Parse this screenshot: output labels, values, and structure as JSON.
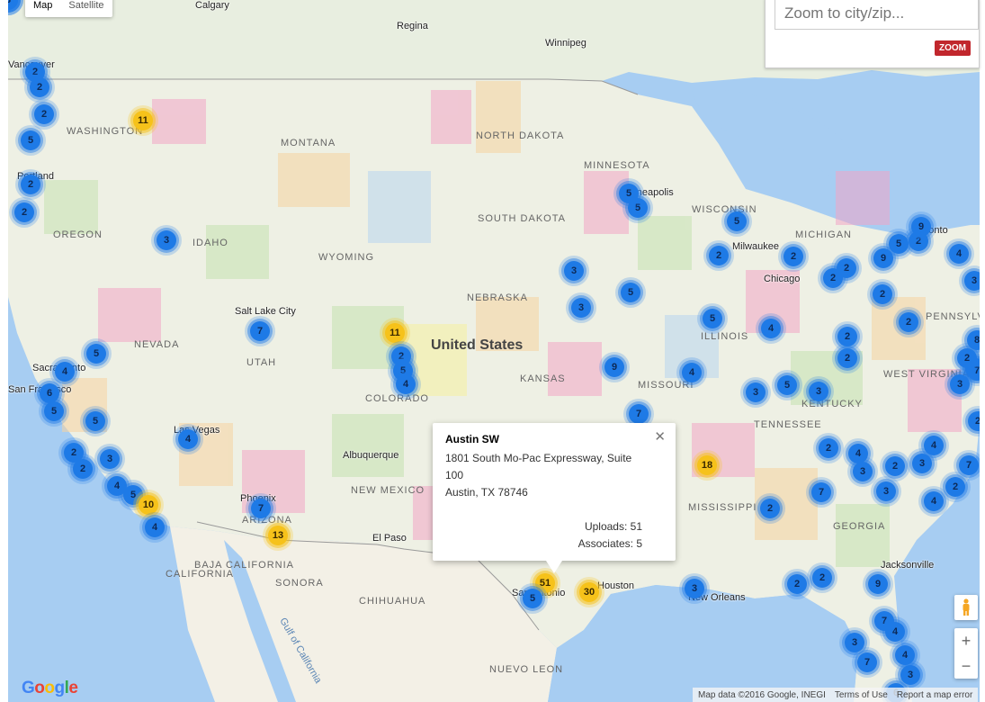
{
  "map_type": {
    "map": "Map",
    "satellite": "Satellite"
  },
  "search": {
    "placeholder": "Zoom to city/zip...",
    "button": "ZOOM"
  },
  "country_label": "United States",
  "cities": [
    {
      "name": "Calgary"
    },
    {
      "name": "Regina"
    },
    {
      "name": "Winnipeg"
    },
    {
      "name": "Salt Lake City"
    },
    {
      "name": "Las Vegas"
    },
    {
      "name": "Albuquerque"
    },
    {
      "name": "El Paso"
    },
    {
      "name": "Milwaukee"
    },
    {
      "name": "Toronto"
    },
    {
      "name": "Jacksonville"
    },
    {
      "name": "Houston"
    },
    {
      "name": "Phoenix"
    },
    {
      "name": "San Francisco"
    },
    {
      "name": "Sacramento"
    },
    {
      "name": "Portland"
    },
    {
      "name": "Minneapolis"
    },
    {
      "name": "Chicago"
    },
    {
      "name": "San Antonio"
    },
    {
      "name": "New Orleans"
    },
    {
      "name": "Vancouver"
    }
  ],
  "states": [
    {
      "name": "WASHINGTON"
    },
    {
      "name": "MONTANA"
    },
    {
      "name": "NORTH DAKOTA"
    },
    {
      "name": "MINNESOTA"
    },
    {
      "name": "OREGON"
    },
    {
      "name": "IDAHO"
    },
    {
      "name": "SOUTH DAKOTA"
    },
    {
      "name": "WISCONSIN"
    },
    {
      "name": "MICHIGAN"
    },
    {
      "name": "WYOMING"
    },
    {
      "name": "NEBRASKA"
    },
    {
      "name": "NEVADA"
    },
    {
      "name": "UTAH"
    },
    {
      "name": "COLORADO"
    },
    {
      "name": "KANSAS"
    },
    {
      "name": "MISSOURI"
    },
    {
      "name": "ILLINOIS"
    },
    {
      "name": "KENTUCKY"
    },
    {
      "name": "PENNSYLVANIA"
    },
    {
      "name": "WEST VIRGINIA"
    },
    {
      "name": "CALIFORNIA"
    },
    {
      "name": "ARIZONA"
    },
    {
      "name": "NEW MEXICO"
    },
    {
      "name": "TENNESSEE"
    },
    {
      "name": "MISSISSIPPI"
    },
    {
      "name": "GEORGIA"
    },
    {
      "name": "BAJA CALIFORNIA"
    },
    {
      "name": "SONORA"
    },
    {
      "name": "CHIHUAHUA"
    },
    {
      "name": "NUEVO LEON"
    },
    {
      "name": "Gulf of California"
    }
  ],
  "clusters": [
    {
      "n": "11",
      "c": "yellow"
    },
    {
      "n": "2",
      "c": "blue"
    },
    {
      "n": "2",
      "c": "blue"
    },
    {
      "n": "2",
      "c": "blue"
    },
    {
      "n": "5",
      "c": "blue"
    },
    {
      "n": "2",
      "c": "blue"
    },
    {
      "n": "2",
      "c": "blue"
    },
    {
      "n": "3",
      "c": "blue"
    },
    {
      "n": "7",
      "c": "blue"
    },
    {
      "n": "5",
      "c": "blue"
    },
    {
      "n": "4",
      "c": "blue"
    },
    {
      "n": "6",
      "c": "blue"
    },
    {
      "n": "5",
      "c": "blue"
    },
    {
      "n": "5",
      "c": "blue"
    },
    {
      "n": "4",
      "c": "blue"
    },
    {
      "n": "2",
      "c": "blue"
    },
    {
      "n": "2",
      "c": "blue"
    },
    {
      "n": "3",
      "c": "blue"
    },
    {
      "n": "4",
      "c": "blue"
    },
    {
      "n": "5",
      "c": "blue"
    },
    {
      "n": "10",
      "c": "yellow"
    },
    {
      "n": "4",
      "c": "blue"
    },
    {
      "n": "7",
      "c": "blue"
    },
    {
      "n": "13",
      "c": "yellow"
    },
    {
      "n": "11",
      "c": "yellow"
    },
    {
      "n": "2",
      "c": "blue"
    },
    {
      "n": "5",
      "c": "blue"
    },
    {
      "n": "4",
      "c": "blue"
    },
    {
      "n": "5",
      "c": "blue"
    },
    {
      "n": "5",
      "c": "blue"
    },
    {
      "n": "3",
      "c": "blue"
    },
    {
      "n": "3",
      "c": "blue"
    },
    {
      "n": "5",
      "c": "blue"
    },
    {
      "n": "9",
      "c": "blue"
    },
    {
      "n": "7",
      "c": "blue"
    },
    {
      "n": "5",
      "c": "blue"
    },
    {
      "n": "4",
      "c": "blue"
    },
    {
      "n": "18",
      "c": "yellow"
    },
    {
      "n": "51",
      "c": "yellow"
    },
    {
      "n": "5",
      "c": "blue"
    },
    {
      "n": "30",
      "c": "yellow"
    },
    {
      "n": "3",
      "c": "blue"
    },
    {
      "n": "2",
      "c": "blue"
    },
    {
      "n": "5",
      "c": "blue"
    },
    {
      "n": "4",
      "c": "blue"
    },
    {
      "n": "3",
      "c": "blue"
    },
    {
      "n": "5",
      "c": "blue"
    },
    {
      "n": "3",
      "c": "blue"
    },
    {
      "n": "2",
      "c": "blue"
    },
    {
      "n": "2",
      "c": "blue"
    },
    {
      "n": "2",
      "c": "blue"
    },
    {
      "n": "9",
      "c": "blue"
    },
    {
      "n": "5",
      "c": "blue"
    },
    {
      "n": "2",
      "c": "blue"
    },
    {
      "n": "9",
      "c": "blue"
    },
    {
      "n": "4",
      "c": "blue"
    },
    {
      "n": "2",
      "c": "blue"
    },
    {
      "n": "2",
      "c": "blue"
    },
    {
      "n": "2",
      "c": "blue"
    },
    {
      "n": "3",
      "c": "blue"
    },
    {
      "n": "2",
      "c": "blue"
    },
    {
      "n": "4",
      "c": "blue"
    },
    {
      "n": "3",
      "c": "blue"
    },
    {
      "n": "8",
      "c": "blue"
    },
    {
      "n": "2",
      "c": "blue"
    },
    {
      "n": "4",
      "c": "blue"
    },
    {
      "n": "3",
      "c": "blue"
    },
    {
      "n": "2",
      "c": "blue"
    },
    {
      "n": "4",
      "c": "blue"
    },
    {
      "n": "3",
      "c": "blue"
    },
    {
      "n": "2",
      "c": "blue"
    },
    {
      "n": "4",
      "c": "blue"
    },
    {
      "n": "7",
      "c": "blue"
    },
    {
      "n": "2",
      "c": "blue"
    },
    {
      "n": "3",
      "c": "blue"
    },
    {
      "n": "7",
      "c": "blue"
    },
    {
      "n": "2",
      "c": "blue"
    },
    {
      "n": "2",
      "c": "blue"
    },
    {
      "n": "9",
      "c": "blue"
    },
    {
      "n": "7",
      "c": "blue"
    },
    {
      "n": "4",
      "c": "blue"
    },
    {
      "n": "3",
      "c": "blue"
    },
    {
      "n": "7",
      "c": "blue"
    },
    {
      "n": "4",
      "c": "blue"
    },
    {
      "n": "3",
      "c": "blue"
    },
    {
      "n": "6",
      "c": "blue"
    },
    {
      "n": "2",
      "c": "blue"
    },
    {
      "n": "7",
      "c": "blue"
    },
    {
      "n": "2",
      "c": "blue"
    },
    {
      "n": "8",
      "c": "blue"
    },
    {
      "n": "4",
      "c": "blue"
    },
    {
      "n": "3",
      "c": "blue"
    }
  ],
  "infowindow": {
    "title": "Austin SW",
    "address_line1": "1801 South Mo-Pac Expressway, Suite 100",
    "address_line2": "Austin, TX 78746",
    "uploads": "Uploads: 51",
    "associates": "Associates: 5"
  },
  "footer": {
    "attribution": "Map data ©2016 Google, INEGI",
    "terms": "Terms of Use",
    "report": "Report a map error"
  },
  "logo": "Google"
}
